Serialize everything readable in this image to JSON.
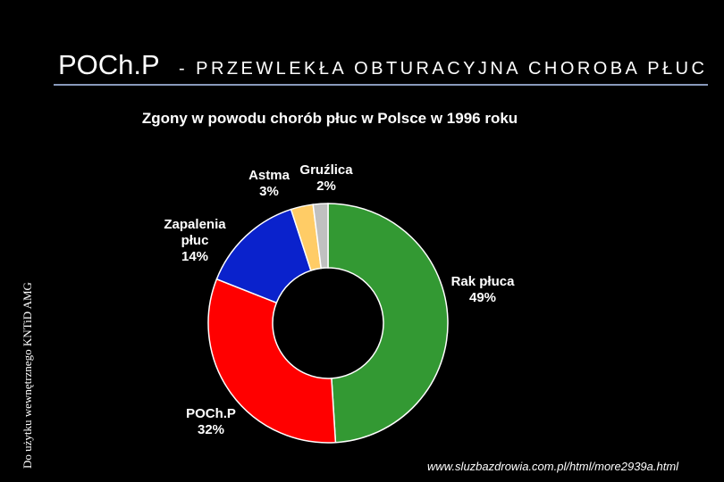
{
  "header": {
    "title_main": "POCh.P",
    "title_rest": "- PRZEWLEKŁA OBTURACYJNA CHOROBA PŁUC"
  },
  "side_note": "Do użytku wewnętrznego KNTiD AMG",
  "source": "www.sluzbazdrowia.com.pl/html/more2939a.html",
  "chart_data": {
    "type": "donut",
    "title": "Zgony w powodu chorób płuc w Polsce w 1996 roku",
    "categories": [
      "Rak płuca",
      "POCh.P",
      "Zapalenia płuc",
      "Astma",
      "Gruźlica"
    ],
    "values": [
      49,
      32,
      14,
      3,
      2
    ],
    "value_labels": [
      "49%",
      "32%",
      "14%",
      "3%",
      "2%"
    ],
    "colors": [
      "#339933",
      "#ff0000",
      "#0a22cc",
      "#ffcc66",
      "#c0c0c0"
    ]
  }
}
